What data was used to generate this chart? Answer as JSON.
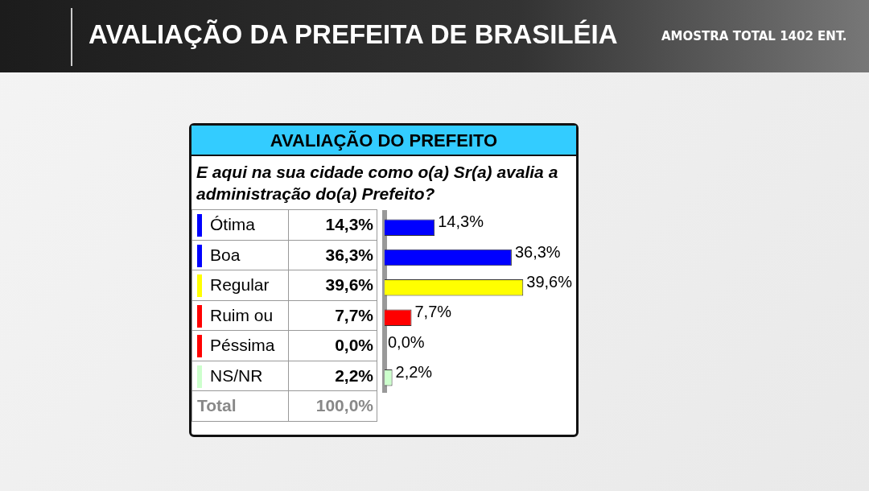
{
  "chart_data": {
    "type": "bar",
    "orientation": "horizontal",
    "title": "AVALIAÇÃO DA PREFEITA DE BRASILÉIA",
    "subtitle": "AMOSTRA TOTAL 1402 ENT.",
    "annotations": [
      "AVALIAÇÃO DO PREFEITO",
      "E aqui na sua cidade como o(a) Sr(a) avalia a administração do(a) Prefeito?",
      "Total",
      "100,0%"
    ],
    "categories": [
      "Ótima",
      "Boa",
      "Regular",
      "Ruim ou",
      "Péssima",
      "NS/NR"
    ],
    "values": [
      14.3,
      36.3,
      39.6,
      7.7,
      0.0,
      2.2
    ],
    "value_labels": [
      "14,3%",
      "36,3%",
      "39,6%",
      "7,7%",
      "0,0%",
      "2,2%"
    ],
    "colors": [
      "#0000ff",
      "#0000ff",
      "#ffff00",
      "#ff0000",
      "#ff0000",
      "#ccffcc"
    ],
    "legend": false
  }
}
